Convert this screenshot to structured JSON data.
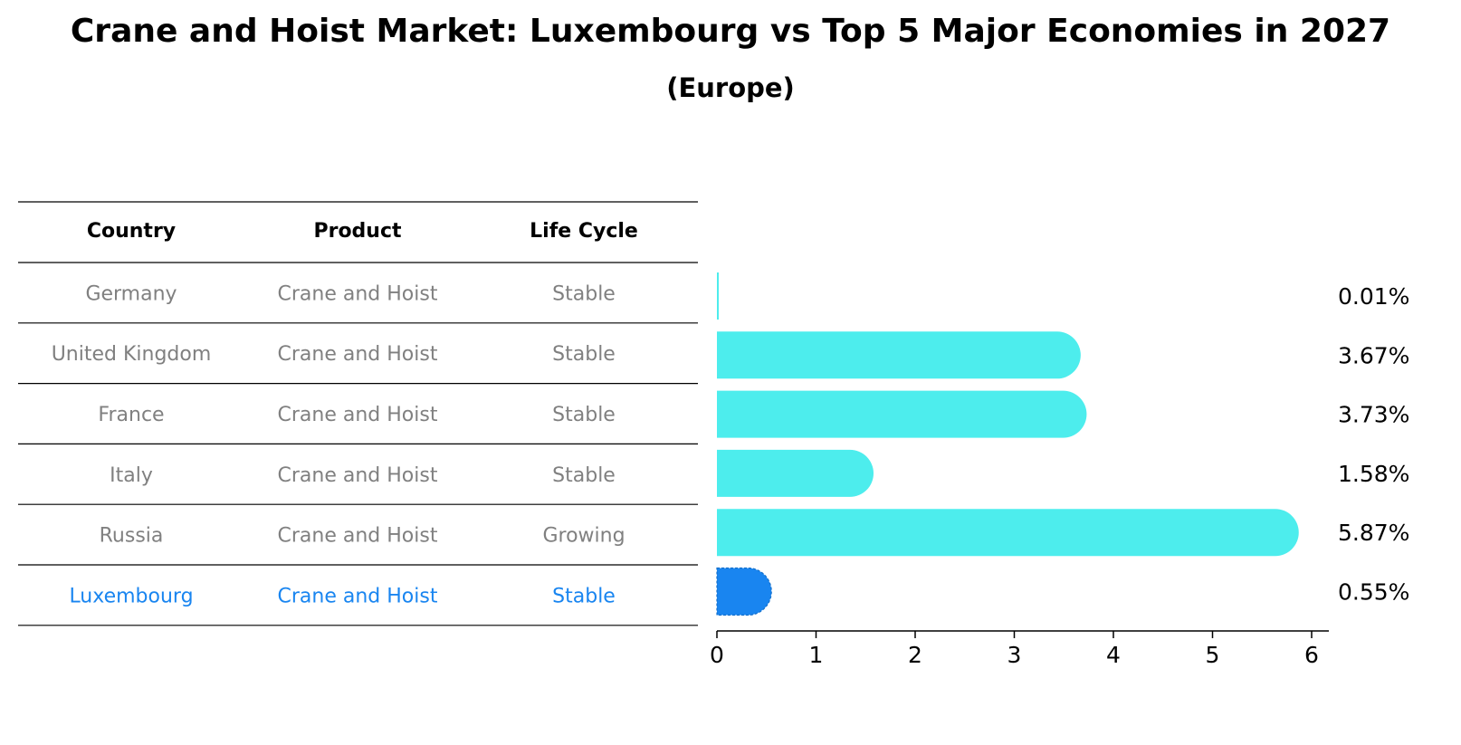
{
  "title": "Crane and Hoist Market: Luxembourg vs Top 5 Major Economies in 2027",
  "subtitle": "(Europe)",
  "table": {
    "headers": [
      "Country",
      "Product",
      "Life Cycle"
    ],
    "rows": [
      [
        "Germany",
        "Crane and Hoist",
        "Stable"
      ],
      [
        "United Kingdom",
        "Crane and Hoist",
        "Stable"
      ],
      [
        "France",
        "Crane and Hoist",
        "Stable"
      ],
      [
        "Italy",
        "Crane and Hoist",
        "Stable"
      ],
      [
        "Russia",
        "Crane and Hoist",
        "Growing"
      ],
      [
        "Luxembourg",
        "Crane and Hoist",
        "Stable"
      ]
    ],
    "highlight_row": 5
  },
  "colors": {
    "bar": "#4deded",
    "highlight": "#1985f0",
    "row_text": "#808080",
    "rule": "#000000"
  },
  "chart_data": {
    "type": "bar",
    "orientation": "horizontal",
    "categories": [
      "Germany",
      "United Kingdom",
      "France",
      "Italy",
      "Russia",
      "Luxembourg"
    ],
    "values": [
      0.01,
      3.67,
      3.73,
      1.58,
      5.87,
      0.55
    ],
    "value_labels": [
      "0.01%",
      "3.67%",
      "3.73%",
      "1.58%",
      "5.87%",
      "0.55%"
    ],
    "xticks": [
      "0",
      "1",
      "2",
      "3",
      "4",
      "5",
      "6"
    ],
    "xlim": [
      0,
      6.15
    ],
    "grid": false
  }
}
